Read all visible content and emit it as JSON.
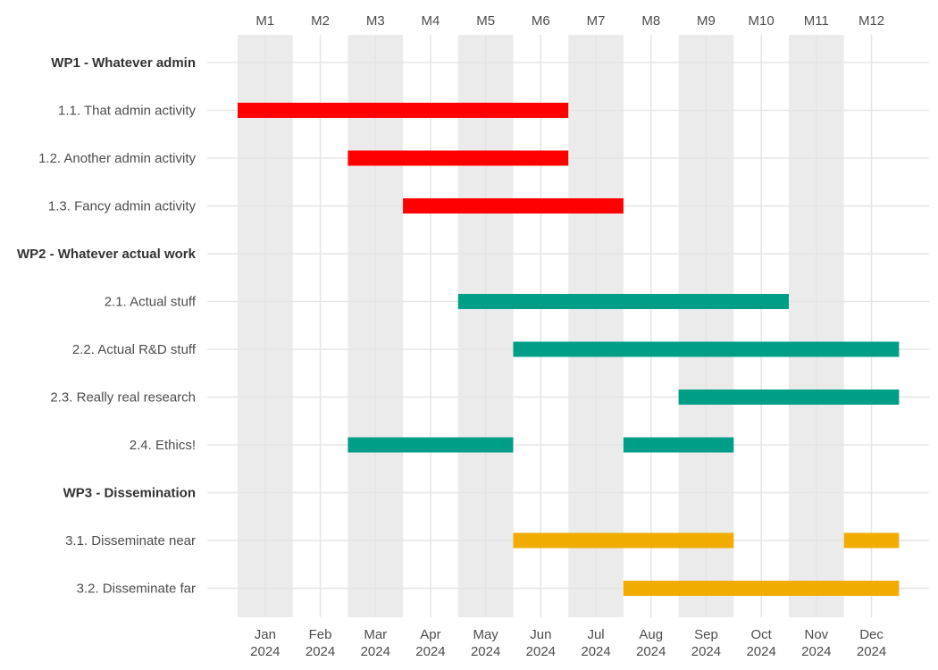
{
  "chart_data": {
    "type": "gantt",
    "title": "",
    "x_unit": "month",
    "xlim": [
      1,
      12
    ],
    "top_axis_labels": [
      "M1",
      "M2",
      "M3",
      "M4",
      "M5",
      "M6",
      "M7",
      "M8",
      "M9",
      "M10",
      "M11",
      "M12"
    ],
    "bottom_axis_labels": [
      {
        "month": "Jan",
        "year": "2024"
      },
      {
        "month": "Feb",
        "year": "2024"
      },
      {
        "month": "Mar",
        "year": "2024"
      },
      {
        "month": "Apr",
        "year": "2024"
      },
      {
        "month": "May",
        "year": "2024"
      },
      {
        "month": "Jun",
        "year": "2024"
      },
      {
        "month": "Jul",
        "year": "2024"
      },
      {
        "month": "Aug",
        "year": "2024"
      },
      {
        "month": "Sep",
        "year": "2024"
      },
      {
        "month": "Oct",
        "year": "2024"
      },
      {
        "month": "Nov",
        "year": "2024"
      },
      {
        "month": "Dec",
        "year": "2024"
      }
    ],
    "shaded_bands": [
      [
        1,
        1
      ],
      [
        3,
        3
      ],
      [
        5,
        5
      ],
      [
        7,
        7
      ],
      [
        9,
        9
      ],
      [
        11,
        11
      ]
    ],
    "colors": {
      "WP1": "#ff0000",
      "WP2": "#009e87",
      "WP3": "#f0ac00",
      "band": "#ebebeb",
      "grid": "#e5e5e5"
    },
    "rows": [
      {
        "label": "WP1 - Whatever admin",
        "header": true,
        "group": "WP1",
        "segments": []
      },
      {
        "label": "1.1. That admin activity",
        "header": false,
        "group": "WP1",
        "segments": [
          [
            1,
            6
          ]
        ]
      },
      {
        "label": "1.2. Another admin activity",
        "header": false,
        "group": "WP1",
        "segments": [
          [
            3,
            6
          ]
        ]
      },
      {
        "label": "1.3. Fancy admin activity",
        "header": false,
        "group": "WP1",
        "segments": [
          [
            4,
            7
          ]
        ]
      },
      {
        "label": "WP2 - Whatever actual work",
        "header": true,
        "group": "WP2",
        "segments": []
      },
      {
        "label": "2.1. Actual stuff",
        "header": false,
        "group": "WP2",
        "segments": [
          [
            5,
            10
          ]
        ]
      },
      {
        "label": "2.2. Actual R&D stuff",
        "header": false,
        "group": "WP2",
        "segments": [
          [
            6,
            12
          ]
        ]
      },
      {
        "label": "2.3. Really real research",
        "header": false,
        "group": "WP2",
        "segments": [
          [
            9,
            12
          ]
        ]
      },
      {
        "label": "2.4. Ethics!",
        "header": false,
        "group": "WP2",
        "segments": [
          [
            3,
            5
          ],
          [
            8,
            9
          ]
        ]
      },
      {
        "label": "WP3 - Dissemination",
        "header": true,
        "group": "WP3",
        "segments": []
      },
      {
        "label": "3.1. Disseminate near",
        "header": false,
        "group": "WP3",
        "segments": [
          [
            6,
            9
          ],
          [
            12,
            12
          ]
        ]
      },
      {
        "label": "3.2. Disseminate far",
        "header": false,
        "group": "WP3",
        "segments": [
          [
            8,
            12
          ]
        ]
      }
    ]
  }
}
